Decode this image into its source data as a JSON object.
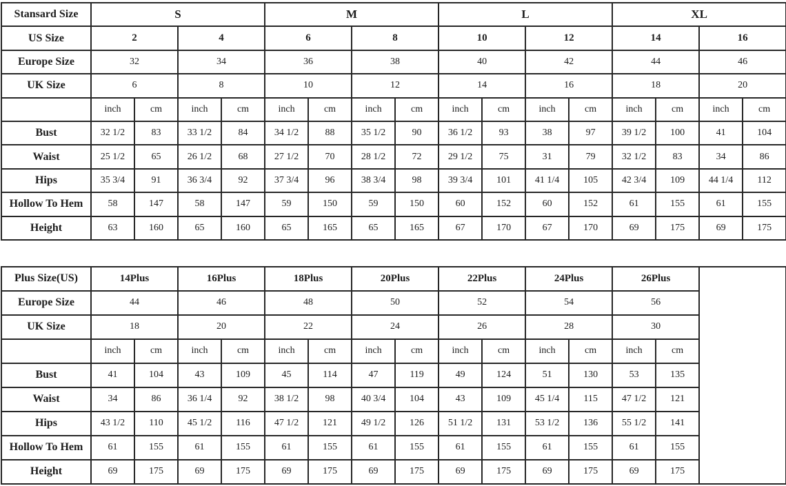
{
  "page": {
    "background": "#ffffff",
    "border_color": "#262626",
    "text_color": "#1c1c1c"
  },
  "chart_data": [
    {
      "type": "table",
      "name": "standard-size-chart",
      "data_columns": 16,
      "trailing_empty_column": false,
      "rows": [
        {
          "label": "Stansard Size",
          "bold": true,
          "big": true,
          "cells": [
            "S",
            "M",
            "L",
            "XL"
          ]
        },
        {
          "label": "US Size",
          "bold": true,
          "big": false,
          "cells": [
            "2",
            "4",
            "6",
            "8",
            "10",
            "12",
            "14",
            "16"
          ]
        },
        {
          "label": "Europe Size",
          "bold": false,
          "big": false,
          "cells": [
            "32",
            "34",
            "36",
            "38",
            "40",
            "42",
            "44",
            "46"
          ]
        },
        {
          "label": "UK Size",
          "bold": false,
          "big": false,
          "cells": [
            "6",
            "8",
            "10",
            "12",
            "14",
            "16",
            "18",
            "20"
          ]
        },
        {
          "label": "",
          "bold": false,
          "big": false,
          "cells": [
            "inch",
            "cm",
            "inch",
            "cm",
            "inch",
            "cm",
            "inch",
            "cm",
            "inch",
            "cm",
            "inch",
            "cm",
            "inch",
            "cm",
            "inch",
            "cm"
          ]
        },
        {
          "label": "Bust",
          "bold": false,
          "big": false,
          "cells": [
            "32 1/2",
            "83",
            "33 1/2",
            "84",
            "34 1/2",
            "88",
            "35 1/2",
            "90",
            "36 1/2",
            "93",
            "38",
            "97",
            "39 1/2",
            "100",
            "41",
            "104"
          ]
        },
        {
          "label": "Waist",
          "bold": false,
          "big": false,
          "cells": [
            "25 1/2",
            "65",
            "26 1/2",
            "68",
            "27 1/2",
            "70",
            "28 1/2",
            "72",
            "29 1/2",
            "75",
            "31",
            "79",
            "32 1/2",
            "83",
            "34",
            "86"
          ]
        },
        {
          "label": "Hips",
          "bold": false,
          "big": false,
          "cells": [
            "35 3/4",
            "91",
            "36 3/4",
            "92",
            "37 3/4",
            "96",
            "38 3/4",
            "98",
            "39 3/4",
            "101",
            "41 1/4",
            "105",
            "42 3/4",
            "109",
            "44 1/4",
            "112"
          ]
        },
        {
          "label": "Hollow To Hem",
          "bold": false,
          "big": false,
          "cells": [
            "58",
            "147",
            "58",
            "147",
            "59",
            "150",
            "59",
            "150",
            "60",
            "152",
            "60",
            "152",
            "61",
            "155",
            "61",
            "155"
          ]
        },
        {
          "label": "Height",
          "bold": false,
          "big": false,
          "cells": [
            "63",
            "160",
            "65",
            "160",
            "65",
            "165",
            "65",
            "165",
            "67",
            "170",
            "67",
            "170",
            "69",
            "175",
            "69",
            "175"
          ]
        }
      ]
    },
    {
      "type": "table",
      "name": "plus-size-chart",
      "data_columns": 14,
      "trailing_empty_column": true,
      "rows": [
        {
          "label": "Plus Size(US)",
          "bold": true,
          "big": false,
          "cells": [
            "14Plus",
            "16Plus",
            "18Plus",
            "20Plus",
            "22Plus",
            "24Plus",
            "26Plus"
          ]
        },
        {
          "label": "Europe Size",
          "bold": false,
          "big": false,
          "cells": [
            "44",
            "46",
            "48",
            "50",
            "52",
            "54",
            "56"
          ]
        },
        {
          "label": "UK Size",
          "bold": false,
          "big": false,
          "cells": [
            "18",
            "20",
            "22",
            "24",
            "26",
            "28",
            "30"
          ]
        },
        {
          "label": "",
          "bold": false,
          "big": false,
          "cells": [
            "inch",
            "cm",
            "inch",
            "cm",
            "inch",
            "cm",
            "inch",
            "cm",
            "inch",
            "cm",
            "inch",
            "cm",
            "inch",
            "cm"
          ]
        },
        {
          "label": "Bust",
          "bold": false,
          "big": false,
          "cells": [
            "41",
            "104",
            "43",
            "109",
            "45",
            "114",
            "47",
            "119",
            "49",
            "124",
            "51",
            "130",
            "53",
            "135"
          ]
        },
        {
          "label": "Waist",
          "bold": false,
          "big": false,
          "cells": [
            "34",
            "86",
            "36 1/4",
            "92",
            "38 1/2",
            "98",
            "40 3/4",
            "104",
            "43",
            "109",
            "45 1/4",
            "115",
            "47 1/2",
            "121"
          ]
        },
        {
          "label": "Hips",
          "bold": false,
          "big": false,
          "cells": [
            "43 1/2",
            "110",
            "45 1/2",
            "116",
            "47 1/2",
            "121",
            "49 1/2",
            "126",
            "51 1/2",
            "131",
            "53 1/2",
            "136",
            "55 1/2",
            "141"
          ]
        },
        {
          "label": "Hollow To Hem",
          "bold": false,
          "big": false,
          "cells": [
            "61",
            "155",
            "61",
            "155",
            "61",
            "155",
            "61",
            "155",
            "61",
            "155",
            "61",
            "155",
            "61",
            "155"
          ]
        },
        {
          "label": "Height",
          "bold": false,
          "big": false,
          "cells": [
            "69",
            "175",
            "69",
            "175",
            "69",
            "175",
            "69",
            "175",
            "69",
            "175",
            "69",
            "175",
            "69",
            "175"
          ]
        }
      ]
    }
  ]
}
